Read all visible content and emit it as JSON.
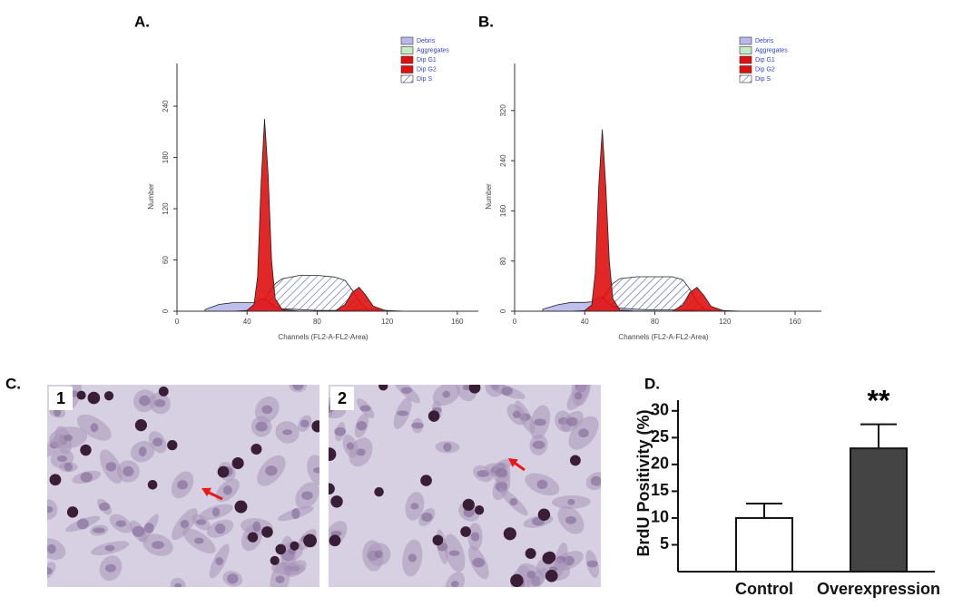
{
  "chart_data": [
    {
      "type": "histogram-fit",
      "panel_label": "A.",
      "xlabel": "Channels (FL2-A-FL2-Area)",
      "ylabel": "Number",
      "x": [
        16,
        24,
        32,
        40,
        44,
        46,
        48,
        50,
        52,
        54,
        56,
        60,
        70,
        80,
        90,
        96,
        100,
        104,
        108,
        112,
        120,
        130
      ],
      "series": [
        {
          "name": "Debris",
          "color": "#b8b8ec",
          "values": [
            2,
            8,
            10,
            10,
            10,
            12,
            14,
            14,
            12,
            8,
            5,
            3,
            2,
            1,
            1,
            1,
            1,
            1,
            1,
            0,
            0,
            0
          ]
        },
        {
          "name": "Aggregates",
          "color": "#c4ecc4",
          "values": [
            0,
            0,
            0,
            0,
            0,
            0,
            0,
            0,
            0,
            0,
            0,
            0,
            0,
            0,
            0,
            0,
            1,
            2,
            2,
            2,
            1,
            0
          ]
        },
        {
          "name": "Dip G1",
          "color": "#e01010",
          "values": [
            0,
            0,
            0,
            1,
            8,
            40,
            150,
            225,
            160,
            60,
            15,
            2,
            0,
            0,
            0,
            0,
            0,
            0,
            0,
            0,
            0,
            0
          ]
        },
        {
          "name": "Dip G2",
          "color": "#e01010",
          "values": [
            0,
            0,
            0,
            0,
            0,
            0,
            0,
            0,
            0,
            0,
            0,
            0,
            0,
            0,
            0,
            8,
            22,
            28,
            18,
            6,
            0,
            0
          ]
        },
        {
          "name": "Dip S",
          "color": "#4a5cb0",
          "hatch": true,
          "values": [
            0,
            0,
            0,
            0,
            2,
            4,
            8,
            14,
            20,
            26,
            32,
            38,
            42,
            42,
            40,
            36,
            25,
            12,
            3,
            0,
            0,
            0
          ]
        }
      ],
      "xlim": [
        0,
        172
      ],
      "xticks": [
        0,
        40,
        80,
        120,
        160
      ],
      "ylim": [
        0,
        290
      ],
      "yticks": [
        0,
        60,
        120,
        180,
        240
      ]
    },
    {
      "type": "histogram-fit",
      "panel_label": "B.",
      "xlabel": "Channels (FL2-A-FL2-Area)",
      "ylabel": "Number",
      "x": [
        16,
        24,
        32,
        40,
        44,
        46,
        48,
        50,
        52,
        54,
        56,
        60,
        70,
        80,
        90,
        96,
        100,
        104,
        108,
        112,
        120,
        130
      ],
      "series": [
        {
          "name": "Debris",
          "color": "#b8b8ec",
          "values": [
            3,
            10,
            14,
            14,
            15,
            18,
            22,
            22,
            18,
            12,
            8,
            5,
            3,
            2,
            2,
            2,
            2,
            2,
            1,
            0,
            0,
            0
          ]
        },
        {
          "name": "Aggregates",
          "color": "#c4ecc4",
          "values": [
            0,
            0,
            0,
            0,
            0,
            0,
            0,
            0,
            0,
            0,
            0,
            0,
            0,
            0,
            0,
            0,
            1,
            2,
            3,
            2,
            1,
            0
          ]
        },
        {
          "name": "Dip G1",
          "color": "#e01010",
          "values": [
            0,
            0,
            0,
            1,
            10,
            60,
            200,
            290,
            200,
            80,
            20,
            2,
            0,
            0,
            0,
            0,
            0,
            0,
            0,
            0,
            0,
            0
          ]
        },
        {
          "name": "Dip G2",
          "color": "#e01010",
          "values": [
            0,
            0,
            0,
            0,
            0,
            0,
            0,
            0,
            0,
            0,
            0,
            0,
            0,
            0,
            0,
            10,
            30,
            38,
            25,
            8,
            0,
            0
          ]
        },
        {
          "name": "Dip S",
          "color": "#4a5cb0",
          "hatch": true,
          "values": [
            0,
            0,
            0,
            0,
            3,
            6,
            12,
            20,
            28,
            36,
            44,
            52,
            55,
            55,
            55,
            50,
            35,
            15,
            4,
            0,
            0,
            0
          ]
        }
      ],
      "xlim": [
        0,
        175
      ],
      "xticks": [
        0,
        40,
        80,
        120,
        160
      ],
      "ylim": [
        0,
        395
      ],
      "yticks": [
        0,
        80,
        160,
        240,
        320
      ]
    },
    {
      "type": "bar",
      "panel_label": "D.",
      "ylabel": "BrdU Positivity (%)",
      "categories": [
        "Control",
        "Overexpression"
      ],
      "values": [
        10,
        23
      ],
      "errors": [
        2.7,
        4.5
      ],
      "colors": [
        "#ffffff",
        "#444444"
      ],
      "annotation": "**",
      "ylim": [
        0,
        32
      ],
      "yticks": [
        5,
        10,
        15,
        20,
        25,
        30
      ]
    }
  ],
  "images": {
    "panel_label": "C.",
    "labels": [
      "1",
      "2"
    ]
  }
}
